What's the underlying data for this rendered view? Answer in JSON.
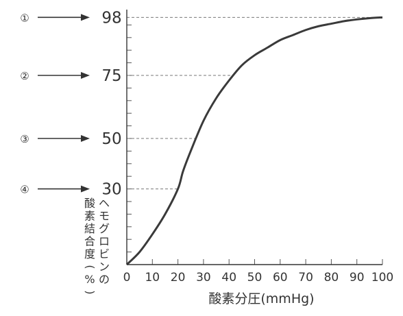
{
  "chart_data": {
    "type": "line",
    "xlabel": "酸素分圧(mmHg)",
    "ylabel_lines": [
      "ヘモグロビンの",
      "酸素結合度(%)"
    ],
    "x_ticks": [
      "0",
      "10",
      "20",
      "30",
      "40",
      "50",
      "60",
      "70",
      "80",
      "90",
      "100"
    ],
    "xlim": [
      0,
      100
    ],
    "ylim": [
      0,
      100
    ],
    "series": [
      {
        "x": [
          0,
          5,
          10,
          15,
          20,
          22,
          25,
          30,
          35,
          40,
          45,
          50,
          55,
          60,
          65,
          70,
          75,
          80,
          85,
          90,
          95,
          100
        ],
        "y": [
          0,
          5,
          12,
          20,
          30,
          37,
          45,
          57,
          66,
          73,
          79,
          83,
          86,
          89,
          91,
          93,
          94.5,
          95.5,
          96.5,
          97.2,
          97.7,
          98
        ]
      }
    ],
    "levels": [
      {
        "marker": "①",
        "value": 98,
        "label": "98"
      },
      {
        "marker": "②",
        "value": 75,
        "label": "75"
      },
      {
        "marker": "③",
        "value": 50,
        "label": "50"
      },
      {
        "marker": "④",
        "value": 30,
        "label": "30"
      }
    ]
  }
}
